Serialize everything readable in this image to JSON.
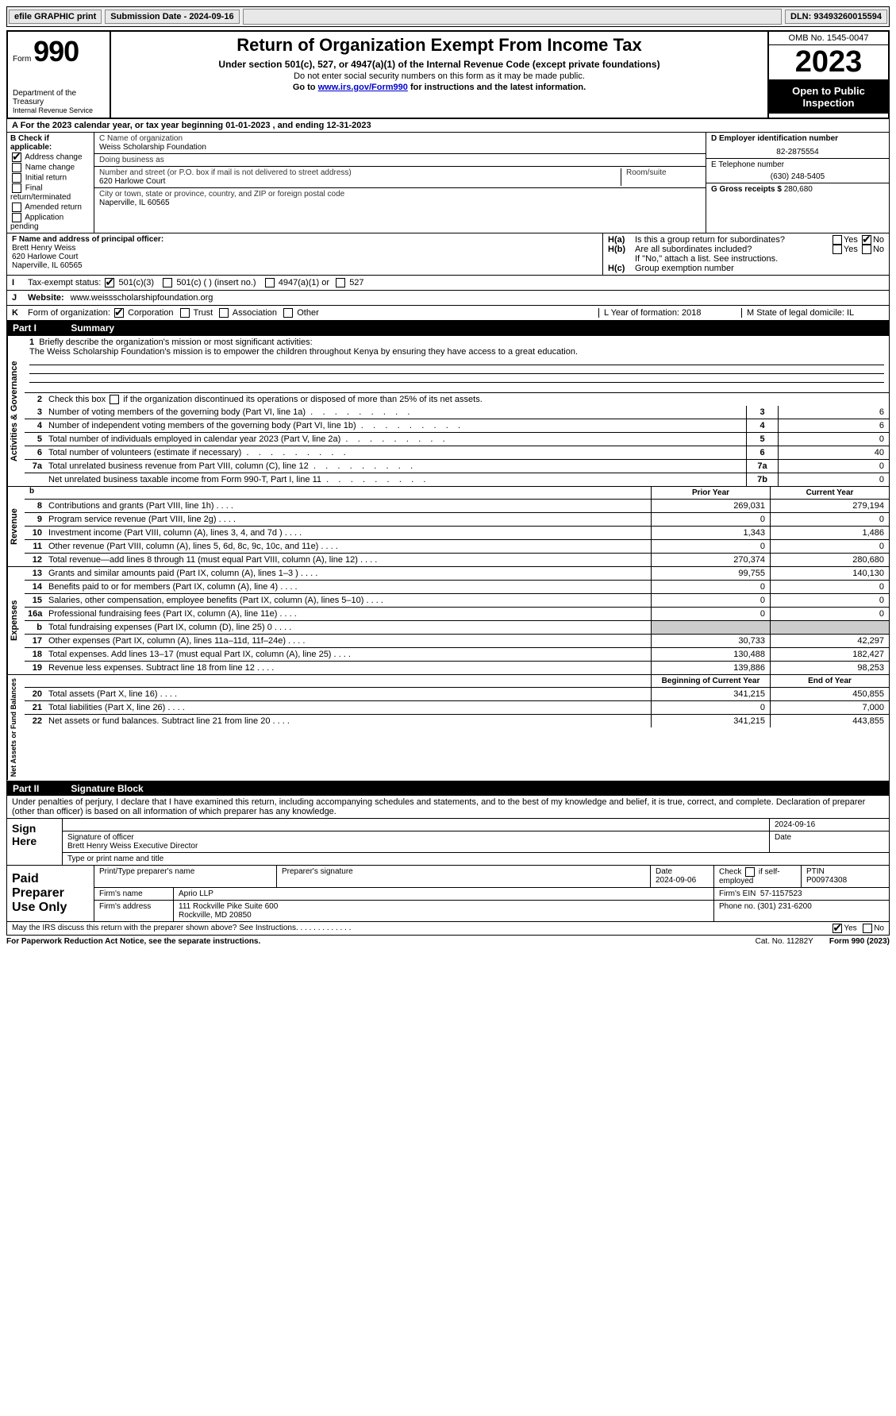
{
  "toolbar": {
    "efile": "efile GRAPHIC print",
    "submission": "Submission Date - 2024-09-16",
    "dln": "DLN: 93493260015594"
  },
  "header": {
    "form_word": "Form",
    "form_num": "990",
    "dept": "Department of the Treasury",
    "irs": "Internal Revenue Service",
    "title": "Return of Organization Exempt From Income Tax",
    "subt": "Under section 501(c), 527, or 4947(a)(1) of the Internal Revenue Code (except private foundations)",
    "warn": "Do not enter social security numbers on this form as it may be made public.",
    "goto_pre": "Go to ",
    "goto_link": "www.irs.gov/Form990",
    "goto_post": " for instructions and the latest information.",
    "omb": "OMB No. 1545-0047",
    "year": "2023",
    "pub": "Open to Public Inspection"
  },
  "cy": {
    "line": "A   For the 2023 calendar year, or tax year beginning 01-01-2023    , and ending 12-31-2023"
  },
  "boxB": {
    "label": "B Check if applicable:",
    "addr_change": "Address change",
    "name_change": "Name change",
    "init_return": "Initial return",
    "final": "Final return/terminated",
    "amended": "Amended return",
    "app_pending": "Application pending"
  },
  "boxC": {
    "name_lbl": "C Name of organization",
    "name": "Weiss Scholarship Foundation",
    "dba_lbl": "Doing business as",
    "street_lbl": "Number and street (or P.O. box if mail is not delivered to street address)",
    "street": "620 Harlowe Court",
    "room_lbl": "Room/suite",
    "city_lbl": "City or town, state or province, country, and ZIP or foreign postal code",
    "city": "Naperville, IL  60565"
  },
  "boxD": {
    "ein_lbl": "D Employer identification number",
    "ein": "82-2875554",
    "phone_lbl": "E Telephone number",
    "phone": "(630) 248-5405",
    "gross_lbl": "G Gross receipts $",
    "gross": "280,680"
  },
  "boxF": {
    "lbl": "F  Name and address of principal officer:",
    "name": "Brett Henry Weiss",
    "street": "620 Harlowe Court",
    "city": "Naperville, IL  60565"
  },
  "boxH": {
    "ha_lbl": "H(a)",
    "ha_txt": "Is this a group return for subordinates?",
    "hb_lbl": "H(b)",
    "hb_txt": "Are all subordinates included?",
    "hb_note": "If \"No,\" attach a list. See instructions.",
    "hc_lbl": "H(c)",
    "hc_txt": "Group exemption number",
    "yes": "Yes",
    "no": "No"
  },
  "boxI": {
    "k": "I",
    "lbl": "Tax-exempt status:",
    "c3": "501(c)(3)",
    "c_other": "501(c) (  ) (insert no.)",
    "a1": "4947(a)(1) or",
    "s527": "527"
  },
  "boxJ": {
    "k": "J",
    "lbl": "Website:",
    "val": "www.weissscholarshipfoundation.org"
  },
  "boxK": {
    "k": "K",
    "lbl": "Form of organization:",
    "corp": "Corporation",
    "trust": "Trust",
    "assoc": "Association",
    "other": "Other",
    "yof": "L Year of formation: 2018",
    "domicile": "M State of legal domicile: IL"
  },
  "part1": {
    "hdr": "Part I",
    "title": "Summary",
    "vert_ag": "Activities & Governance",
    "q1_lbl": "Briefly describe the organization's mission or most significant activities:",
    "q1_val": "The Weiss Scholarship Foundation's mission is to empower the children throughout Kenya by ensuring they have access to a great education.",
    "q2": "Check this box          if the organization discontinued its operations or disposed of more than 25% of its net assets.",
    "rows_single": [
      {
        "n": "3",
        "t": "Number of voting members of the governing body (Part VI, line 1a)",
        "box": "3",
        "v": "6"
      },
      {
        "n": "4",
        "t": "Number of independent voting members of the governing body (Part VI, line 1b)",
        "box": "4",
        "v": "6"
      },
      {
        "n": "5",
        "t": "Total number of individuals employed in calendar year 2023 (Part V, line 2a)",
        "box": "5",
        "v": "0"
      },
      {
        "n": "6",
        "t": "Total number of volunteers (estimate if necessary)",
        "box": "6",
        "v": "40"
      },
      {
        "n": "7a",
        "t": "Total unrelated business revenue from Part VIII, column (C), line 12",
        "box": "7a",
        "v": "0"
      },
      {
        "n": "",
        "t": "Net unrelated business taxable income from Form 990-T, Part I, line 11",
        "box": "7b",
        "v": "0"
      }
    ],
    "vert_rev": "Revenue",
    "col_prior": "Prior Year",
    "col_cur": "Current Year",
    "rev_rows": [
      {
        "n": "8",
        "t": "Contributions and grants (Part VIII, line 1h)",
        "p": "269,031",
        "c": "279,194"
      },
      {
        "n": "9",
        "t": "Program service revenue (Part VIII, line 2g)",
        "p": "0",
        "c": "0"
      },
      {
        "n": "10",
        "t": "Investment income (Part VIII, column (A), lines 3, 4, and 7d )",
        "p": "1,343",
        "c": "1,486"
      },
      {
        "n": "11",
        "t": "Other revenue (Part VIII, column (A), lines 5, 6d, 8c, 9c, 10c, and 11e)",
        "p": "0",
        "c": "0"
      },
      {
        "n": "12",
        "t": "Total revenue—add lines 8 through 11 (must equal Part VIII, column (A), line 12)",
        "p": "270,374",
        "c": "280,680"
      }
    ],
    "vert_exp": "Expenses",
    "exp_rows": [
      {
        "n": "13",
        "t": "Grants and similar amounts paid (Part IX, column (A), lines 1–3 )",
        "p": "99,755",
        "c": "140,130"
      },
      {
        "n": "14",
        "t": "Benefits paid to or for members (Part IX, column (A), line 4)",
        "p": "0",
        "c": "0"
      },
      {
        "n": "15",
        "t": "Salaries, other compensation, employee benefits (Part IX, column (A), lines 5–10)",
        "p": "0",
        "c": "0"
      },
      {
        "n": "16a",
        "t": "Professional fundraising fees (Part IX, column (A), line 11e)",
        "p": "0",
        "c": "0"
      },
      {
        "n": "b",
        "t": "Total fundraising expenses (Part IX, column (D), line 25) 0",
        "p": "shade",
        "c": "shade"
      },
      {
        "n": "17",
        "t": "Other expenses (Part IX, column (A), lines 11a–11d, 11f–24e)",
        "p": "30,733",
        "c": "42,297"
      },
      {
        "n": "18",
        "t": "Total expenses. Add lines 13–17 (must equal Part IX, column (A), line 25)",
        "p": "130,488",
        "c": "182,427"
      },
      {
        "n": "19",
        "t": "Revenue less expenses. Subtract line 18 from line 12",
        "p": "139,886",
        "c": "98,253"
      }
    ],
    "vert_bal": "Net Assets or Fund Balances",
    "bal_hdr_p": "Beginning of Current Year",
    "bal_hdr_c": "End of Year",
    "bal_rows": [
      {
        "n": "20",
        "t": "Total assets (Part X, line 16)",
        "p": "341,215",
        "c": "450,855"
      },
      {
        "n": "21",
        "t": "Total liabilities (Part X, line 26)",
        "p": "0",
        "c": "7,000"
      },
      {
        "n": "22",
        "t": "Net assets or fund balances. Subtract line 21 from line 20",
        "p": "341,215",
        "c": "443,855"
      }
    ]
  },
  "part2": {
    "hdr": "Part II",
    "title": "Signature Block",
    "decl": "Under penalties of perjury, I declare that I have examined this return, including accompanying schedules and statements, and to the best of my knowledge and belief, it is true, correct, and complete. Declaration of preparer (other than officer) is based on all information of which preparer has any knowledge.",
    "sign_here": "Sign Here",
    "sig_officer_lbl": "Signature of officer",
    "sig_officer": "Brett Henry Weiss  Executive Director",
    "sig_type_lbl": "Type or print name and title",
    "sig_date": "2024-09-16",
    "date_lbl": "Date",
    "paid": "Paid Preparer Use Only",
    "prep_name_lbl": "Print/Type preparer's name",
    "prep_sig_lbl": "Preparer's signature",
    "prep_date_lbl": "Date",
    "prep_date": "2024-09-06",
    "self_emp": "Check          if self-employed",
    "ptin_lbl": "PTIN",
    "ptin": "P00974308",
    "firm_name_lbl": "Firm's name",
    "firm_name": "Aprio LLP",
    "firm_ein_lbl": "Firm's EIN",
    "firm_ein": "57-1157523",
    "firm_addr_lbl": "Firm's address",
    "firm_addr1": "111 Rockville Pike Suite 600",
    "firm_addr2": "Rockville, MD  20850",
    "firm_phone_lbl": "Phone no.",
    "firm_phone": "(301) 231-6200",
    "discuss": "May the IRS discuss this return with the preparer shown above? See Instructions.",
    "yes": "Yes",
    "no": "No"
  },
  "footer": {
    "pra": "For Paperwork Reduction Act Notice, see the separate instructions.",
    "cat": "Cat. No. 11282Y",
    "form": "Form 990 (2023)"
  },
  "colors": {
    "black": "#000000",
    "shade": "#cccccc",
    "link": "#0000cc"
  }
}
